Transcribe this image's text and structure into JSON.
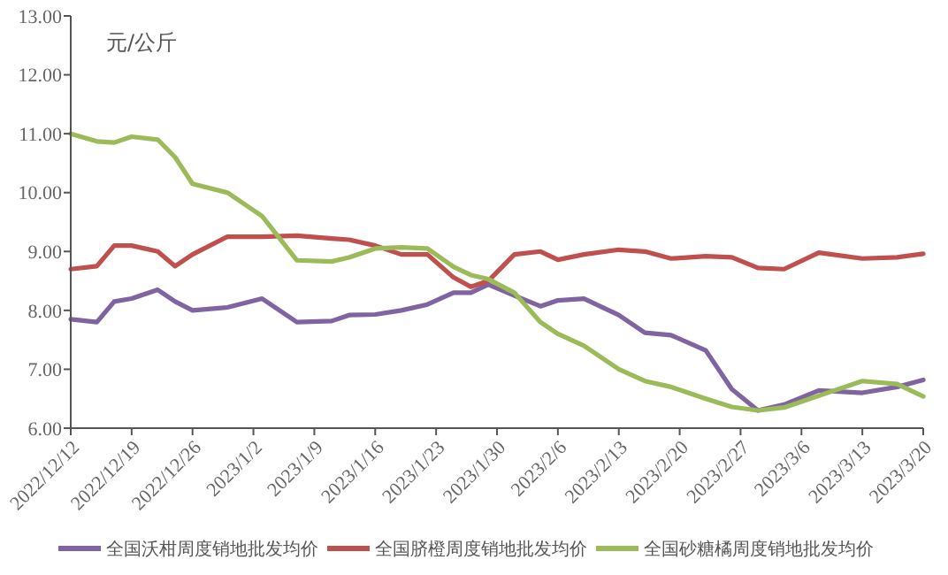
{
  "chart_data": {
    "type": "line",
    "ylabel": "元/公斤",
    "legend": "bottom",
    "marker": "none",
    "line_style": "solid",
    "x": [
      "2022-12-12",
      "2022-12-15",
      "2022-12-17",
      "2022-12-19",
      "2022-12-22",
      "2022-12-24",
      "2022-12-26",
      "2022-12-30",
      "2023-01-03",
      "2023-01-07",
      "2023-01-11",
      "2023-01-13",
      "2023-01-16",
      "2023-01-19",
      "2023-01-22",
      "2023-01-25",
      "2023-01-27",
      "2023-01-29",
      "2023-02-01",
      "2023-02-04",
      "2023-02-06",
      "2023-02-09",
      "2023-02-13",
      "2023-02-16",
      "2023-02-19",
      "2023-02-23",
      "2023-02-26",
      "2023-03-01",
      "2023-03-04",
      "2023-03-08",
      "2023-03-13",
      "2023-03-17",
      "2023-03-20"
    ],
    "series": [
      {
        "name": "全国沃柑周度销地批发均价",
        "color": "#8064a2",
        "values": [
          7.85,
          7.8,
          8.15,
          8.2,
          8.35,
          8.15,
          8.0,
          8.05,
          8.2,
          7.8,
          7.82,
          7.92,
          7.93,
          8.0,
          8.1,
          8.3,
          8.3,
          8.44,
          8.25,
          8.07,
          8.17,
          8.2,
          7.92,
          7.62,
          7.58,
          7.32,
          6.66,
          6.3,
          6.4,
          6.64,
          6.6,
          6.7,
          6.82
        ]
      },
      {
        "name": "全国脐橙周度销地批发均价",
        "color": "#c0504d",
        "values": [
          8.7,
          8.75,
          9.1,
          9.1,
          9.0,
          8.75,
          8.95,
          9.25,
          9.25,
          9.27,
          9.22,
          9.2,
          9.1,
          8.95,
          8.95,
          8.56,
          8.4,
          8.5,
          8.95,
          9.0,
          8.86,
          8.95,
          9.03,
          9.0,
          8.88,
          8.92,
          8.9,
          8.72,
          8.7,
          8.98,
          8.88,
          8.9,
          8.96
        ]
      },
      {
        "name": "全国砂糖橘周度销地批发均价",
        "color": "#9bbb59",
        "values": [
          11.0,
          10.87,
          10.85,
          10.95,
          10.9,
          10.6,
          10.15,
          10.0,
          9.6,
          8.85,
          8.83,
          8.9,
          9.05,
          9.07,
          9.05,
          8.74,
          8.6,
          8.53,
          8.3,
          7.8,
          7.6,
          7.4,
          7.0,
          6.8,
          6.7,
          6.5,
          6.36,
          6.3,
          6.35,
          6.55,
          6.8,
          6.75,
          6.54
        ]
      }
    ],
    "xlim": [
      "2022-12-12",
      "2023-03-20"
    ],
    "xticks": [
      {
        "value": "2022-12-12",
        "label": "2022/12/12"
      },
      {
        "value": "2022-12-19",
        "label": "2022/12/19"
      },
      {
        "value": "2022-12-26",
        "label": "2022/12/26"
      },
      {
        "value": "2023-01-02",
        "label": "2023/1/2"
      },
      {
        "value": "2023-01-09",
        "label": "2023/1/9"
      },
      {
        "value": "2023-01-16",
        "label": "2023/1/16"
      },
      {
        "value": "2023-01-23",
        "label": "2023/1/23"
      },
      {
        "value": "2023-01-30",
        "label": "2023/1/30"
      },
      {
        "value": "2023-02-06",
        "label": "2023/2/6"
      },
      {
        "value": "2023-02-13",
        "label": "2023/2/13"
      },
      {
        "value": "2023-02-20",
        "label": "2023/2/20"
      },
      {
        "value": "2023-02-27",
        "label": "2023/2/27"
      },
      {
        "value": "2023-03-06",
        "label": "2023/3/6"
      },
      {
        "value": "2023-03-13",
        "label": "2023/3/13"
      },
      {
        "value": "2023-03-20",
        "label": "2023/3/20"
      }
    ],
    "ylim": [
      6,
      13
    ],
    "yticks": [
      {
        "value": 6,
        "label": "6.00"
      },
      {
        "value": 7,
        "label": "7.00"
      },
      {
        "value": 8,
        "label": "8.00"
      },
      {
        "value": 9,
        "label": "9.00"
      },
      {
        "value": 10,
        "label": "10.00"
      },
      {
        "value": 11,
        "label": "11.00"
      },
      {
        "value": 12,
        "label": "12.00"
      },
      {
        "value": 13,
        "label": "13.00"
      }
    ]
  }
}
